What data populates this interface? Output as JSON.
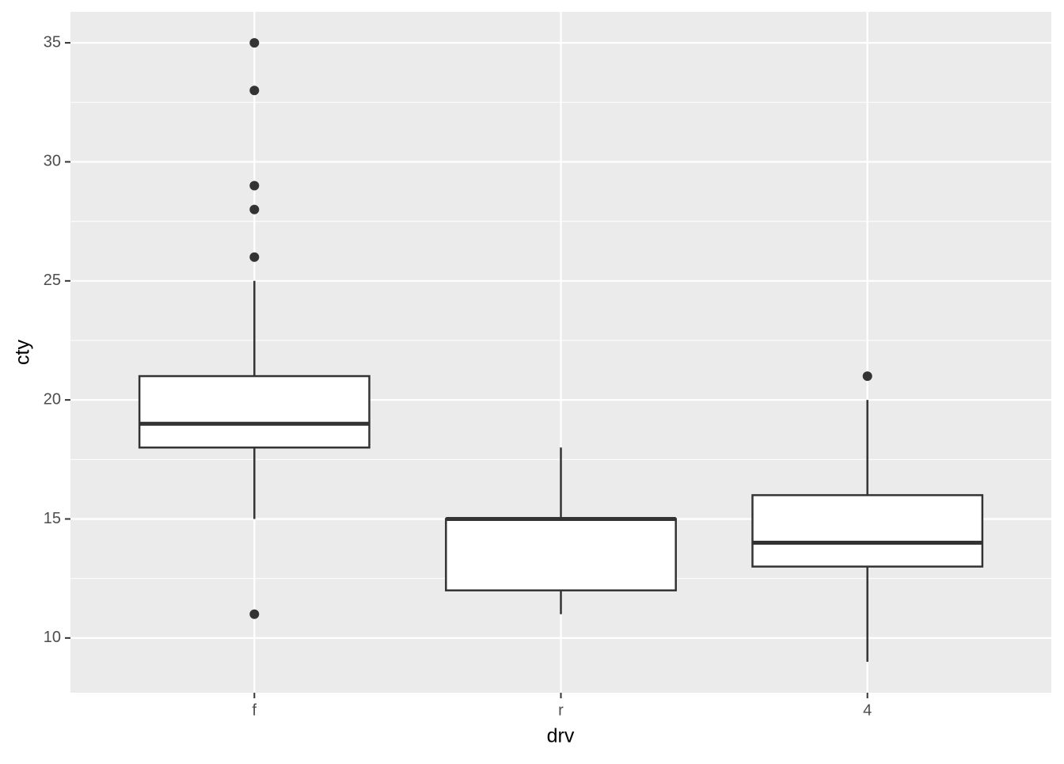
{
  "chart_data": {
    "type": "box",
    "x_label": "drv",
    "y_label": "cty",
    "categories": [
      "f",
      "r",
      "4"
    ],
    "boxes": [
      {
        "low": 15,
        "q1": 18,
        "median": 19,
        "q3": 21,
        "high": 25,
        "outliers": [
          35,
          33,
          29,
          28,
          26,
          11
        ]
      },
      {
        "low": 11,
        "q1": 12,
        "median": 15,
        "q3": 15,
        "high": 18,
        "outliers": []
      },
      {
        "low": 9,
        "q1": 13,
        "median": 14,
        "q3": 16,
        "high": 20,
        "outliers": [
          21
        ]
      }
    ],
    "ylim": [
      7.7,
      36.3
    ],
    "yticks": [
      10,
      15,
      20,
      25,
      30,
      35
    ],
    "minor_yticks": [
      12.5,
      17.5,
      22.5,
      27.5,
      32.5
    ],
    "grid": true,
    "panel_color": "#ebebeb",
    "box_fill": "#ffffff",
    "line_color": "#333333"
  }
}
